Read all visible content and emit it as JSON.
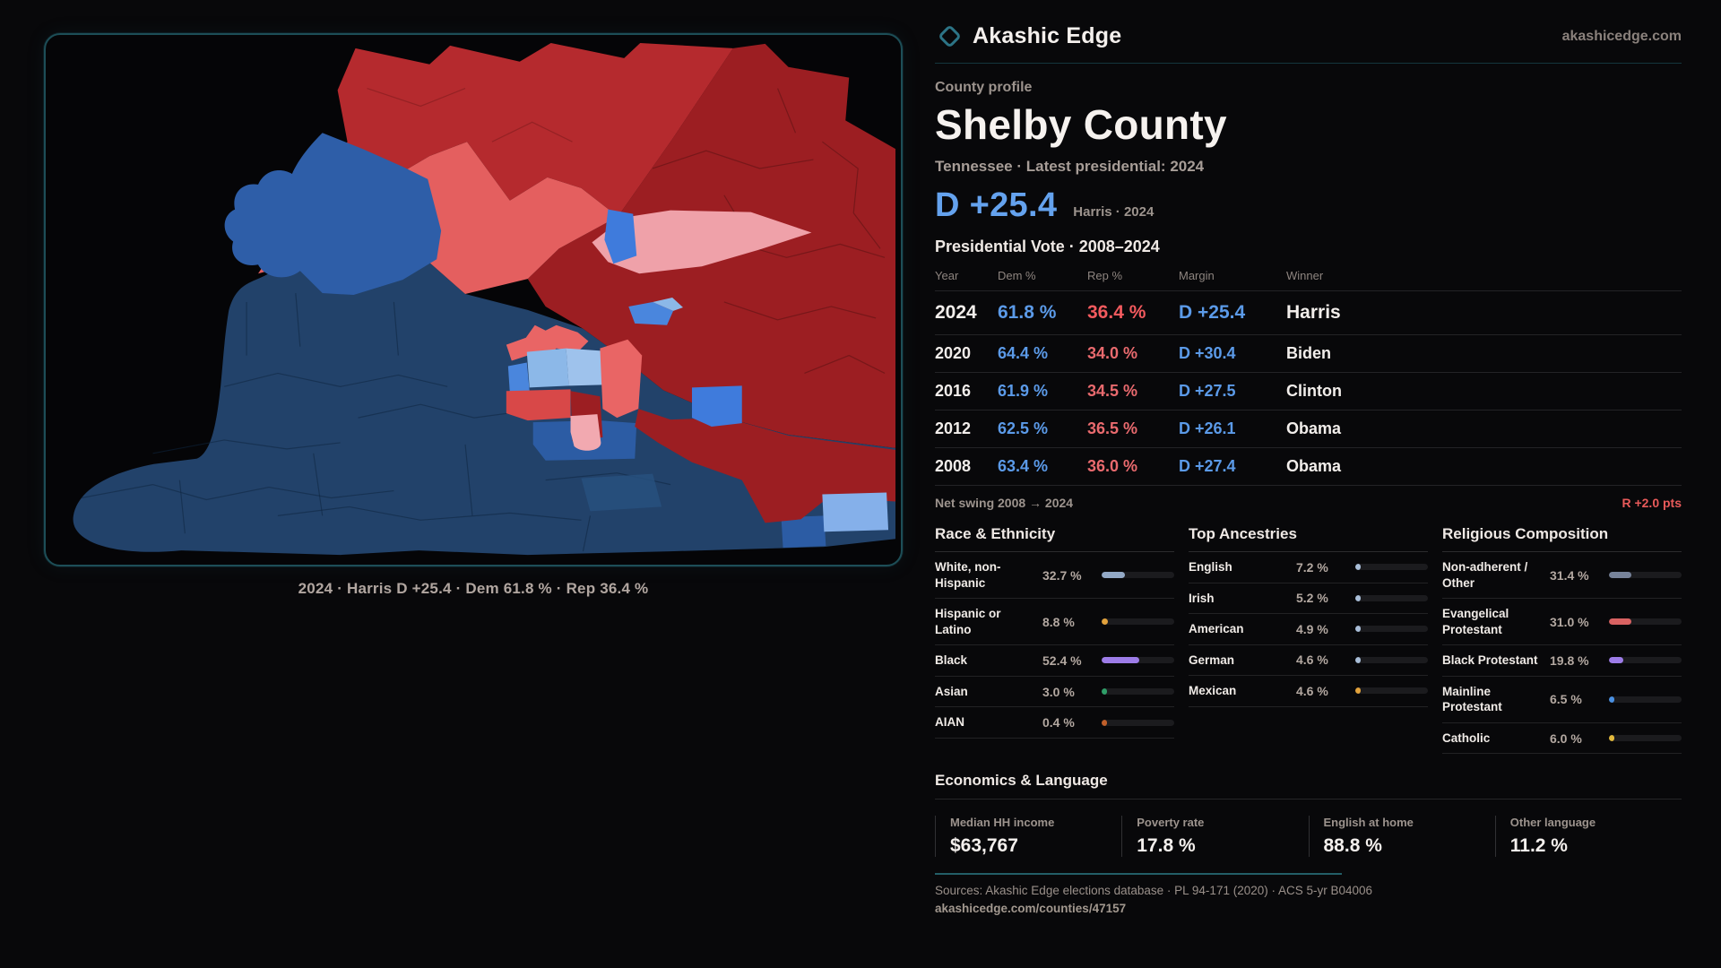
{
  "brand": {
    "name": "Akashic Edge",
    "site": "akashicedge.com"
  },
  "profile": {
    "eyebrow": "County profile",
    "title": "Shelby County",
    "subtitle": "Tennessee · Latest presidential: 2024",
    "headline_margin": "D +25.4",
    "headline_note": "Harris · 2024"
  },
  "vote_table": {
    "title": "Presidential Vote · 2008–2024",
    "columns": [
      "Year",
      "Dem %",
      "Rep %",
      "Margin",
      "Winner"
    ],
    "rows": [
      {
        "year": "2024",
        "dem": "61.8 %",
        "rep": "36.4 %",
        "margin": "D +25.4",
        "winner": "Harris"
      },
      {
        "year": "2020",
        "dem": "64.4 %",
        "rep": "34.0 %",
        "margin": "D +30.4",
        "winner": "Biden"
      },
      {
        "year": "2016",
        "dem": "61.9 %",
        "rep": "34.5 %",
        "margin": "D +27.5",
        "winner": "Clinton"
      },
      {
        "year": "2012",
        "dem": "62.5 %",
        "rep": "36.5 %",
        "margin": "D +26.1",
        "winner": "Obama"
      },
      {
        "year": "2008",
        "dem": "63.4 %",
        "rep": "36.0 %",
        "margin": "D +27.4",
        "winner": "Obama"
      }
    ],
    "net_swing_label": "Net swing 2008 → 2024",
    "net_swing_value": "R +2.0 pts"
  },
  "demographics": {
    "sections": [
      {
        "id": "race",
        "title": "Race & Ethnicity",
        "rows": [
          {
            "label": "White, non-Hispanic",
            "value": "32.7 %",
            "pct": 32.7,
            "color": "#93a9c6"
          },
          {
            "label": "Hispanic or Latino",
            "value": "8.8 %",
            "pct": 8.8,
            "color": "#e2a23c"
          },
          {
            "label": "Black",
            "value": "52.4 %",
            "pct": 52.4,
            "color": "#9d7ce8"
          },
          {
            "label": "Asian",
            "value": "3.0 %",
            "pct": 3.0,
            "color": "#2f9e68"
          },
          {
            "label": "AIAN",
            "value": "0.4 %",
            "pct": 0.4,
            "color": "#c05f2a"
          }
        ]
      },
      {
        "id": "ancestry",
        "title": "Top Ancestries",
        "rows": [
          {
            "label": "English",
            "value": "7.2 %",
            "pct": 7.2,
            "color": "#a9bed8"
          },
          {
            "label": "Irish",
            "value": "5.2 %",
            "pct": 5.2,
            "color": "#a9bed8"
          },
          {
            "label": "American",
            "value": "4.9 %",
            "pct": 4.9,
            "color": "#a9bed8"
          },
          {
            "label": "German",
            "value": "4.6 %",
            "pct": 4.6,
            "color": "#a9bed8"
          },
          {
            "label": "Mexican",
            "value": "4.6 %",
            "pct": 4.6,
            "color": "#e2a23c"
          }
        ]
      },
      {
        "id": "religion",
        "title": "Religious Composition",
        "rows": [
          {
            "label": "Non-adherent / Other",
            "value": "31.4 %",
            "pct": 31.4,
            "color": "#77839a"
          },
          {
            "label": "Evangelical Protestant",
            "value": "31.0 %",
            "pct": 31.0,
            "color": "#d96262"
          },
          {
            "label": "Black Protestant",
            "value": "19.8 %",
            "pct": 19.8,
            "color": "#9d7ce8"
          },
          {
            "label": "Mainline Protestant",
            "value": "6.5 %",
            "pct": 6.5,
            "color": "#4a90e2"
          },
          {
            "label": "Catholic",
            "value": "6.0 %",
            "pct": 6.0,
            "color": "#e2b93c"
          }
        ]
      }
    ]
  },
  "economics": {
    "title": "Economics & Language",
    "stats": [
      {
        "label": "Median HH income",
        "value": "$63,767"
      },
      {
        "label": "Poverty rate",
        "value": "17.8 %"
      },
      {
        "label": "English at home",
        "value": "88.8 %"
      },
      {
        "label": "Other language",
        "value": "11.2 %"
      }
    ]
  },
  "map": {
    "caption": "2024 · Harris D +25.4 · Dem 61.8 % · Rep 36.4 %"
  },
  "footer": {
    "sources": "Sources: Akashic Edge elections database · PL 94-171 (2020) · ACS 5-yr B04006",
    "permalink": "akashicedge.com/counties/47157"
  },
  "colors": {
    "accent_teal": "#2c7486",
    "dem_blue": "#5b9ae8",
    "rep_red": "#e96a6e",
    "map_navy": "#22426a",
    "map_dark_red": "#9c1e22",
    "map_bright_red": "#b52a2e",
    "map_salmon": "#e45f5f",
    "map_pale_pink": "#efa1a9",
    "map_medium_blue": "#2e5ea8",
    "map_bright_blue": "#3f7bdc",
    "map_light_blue": "#8cb8e8"
  }
}
